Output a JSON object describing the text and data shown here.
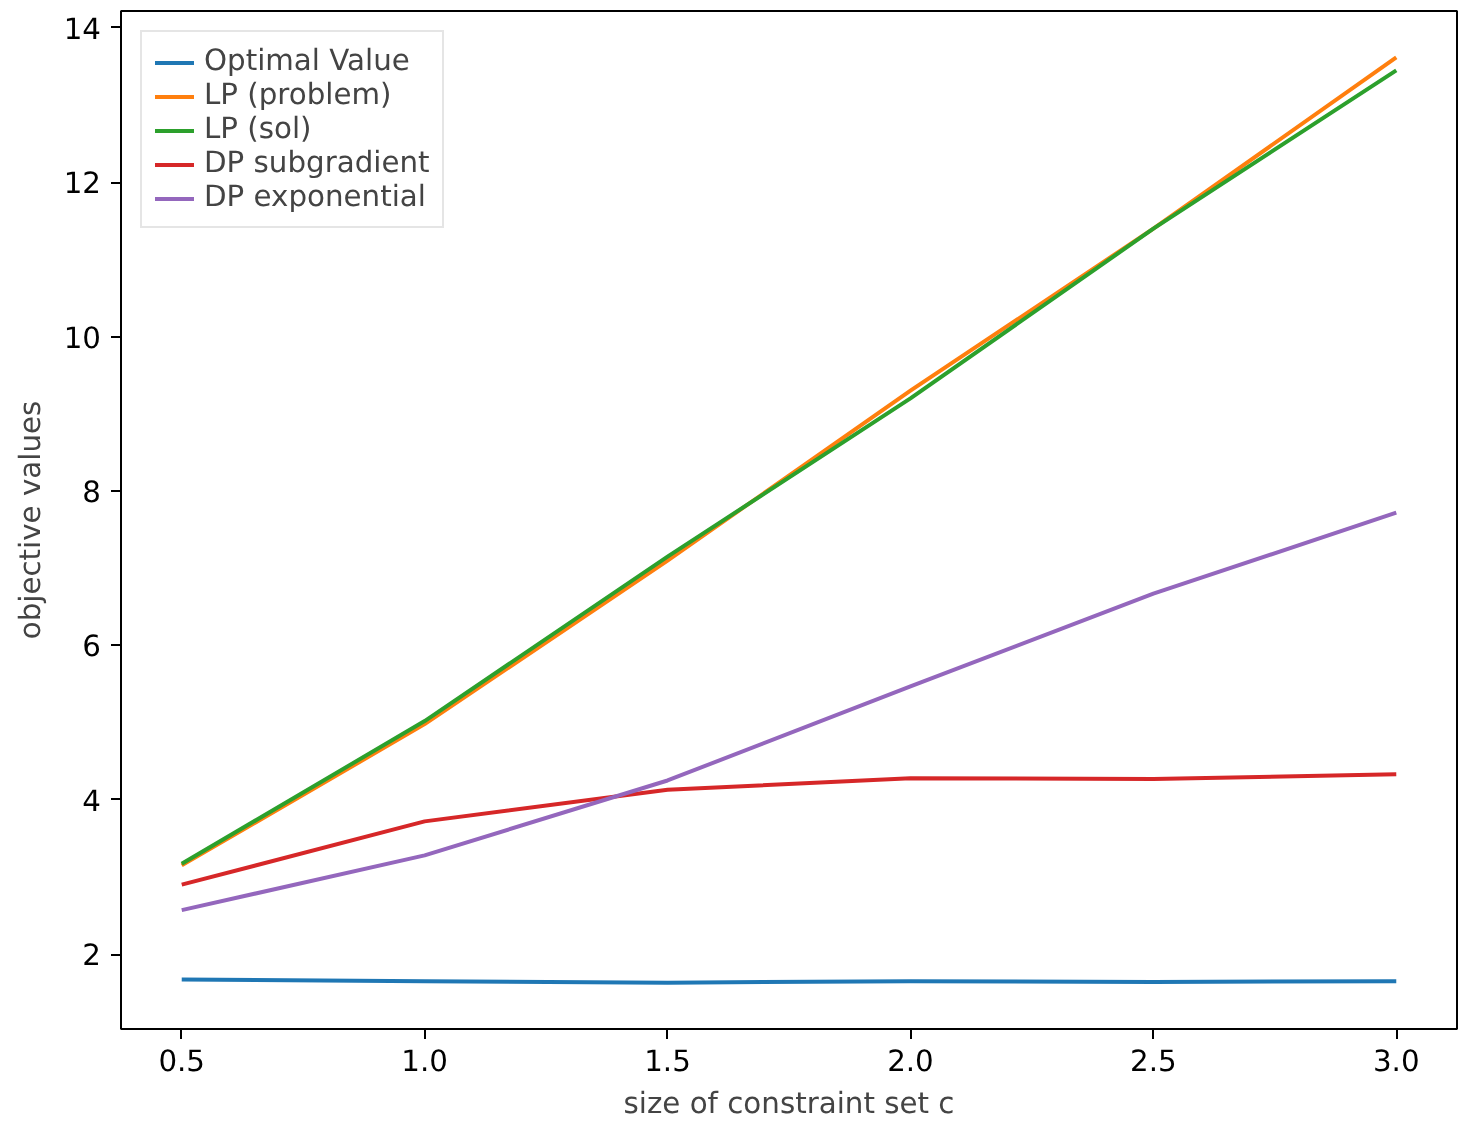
{
  "chart_data": {
    "type": "line",
    "xlabel": "size of constraint set c",
    "ylabel": "objective values",
    "x": [
      0.5,
      1.0,
      1.5,
      2.0,
      2.5,
      3.0
    ],
    "series": [
      {
        "name": "Optimal Value",
        "color": "#1f77b4",
        "values": [
          1.67,
          1.65,
          1.63,
          1.65,
          1.64,
          1.65
        ]
      },
      {
        "name": "LP (problem)",
        "color": "#ff7f0e",
        "values": [
          3.15,
          4.98,
          7.1,
          9.3,
          11.4,
          13.62
        ]
      },
      {
        "name": "LP (sol)",
        "color": "#2ca02c",
        "values": [
          3.17,
          5.02,
          7.15,
          9.2,
          11.4,
          13.45
        ]
      },
      {
        "name": "DP subgradient",
        "color": "#d62728",
        "values": [
          2.9,
          3.72,
          4.13,
          4.28,
          4.27,
          4.33
        ]
      },
      {
        "name": "DP exponential",
        "color": "#9467bd",
        "values": [
          2.57,
          3.28,
          4.25,
          5.47,
          6.67,
          7.72
        ]
      }
    ],
    "xlim": [
      0.375,
      3.125
    ],
    "ylim": [
      1.03,
      14.22
    ],
    "xticks": [
      {
        "value": 0.5,
        "label": "0.5"
      },
      {
        "value": 1.0,
        "label": "1.0"
      },
      {
        "value": 1.5,
        "label": "1.5"
      },
      {
        "value": 2.0,
        "label": "2.0"
      },
      {
        "value": 2.5,
        "label": "2.5"
      },
      {
        "value": 3.0,
        "label": "3.0"
      }
    ],
    "yticks": [
      2,
      4,
      6,
      8,
      10,
      12,
      14
    ],
    "legend": "top left",
    "grid": false,
    "marker": "none",
    "line_style": "solid"
  }
}
